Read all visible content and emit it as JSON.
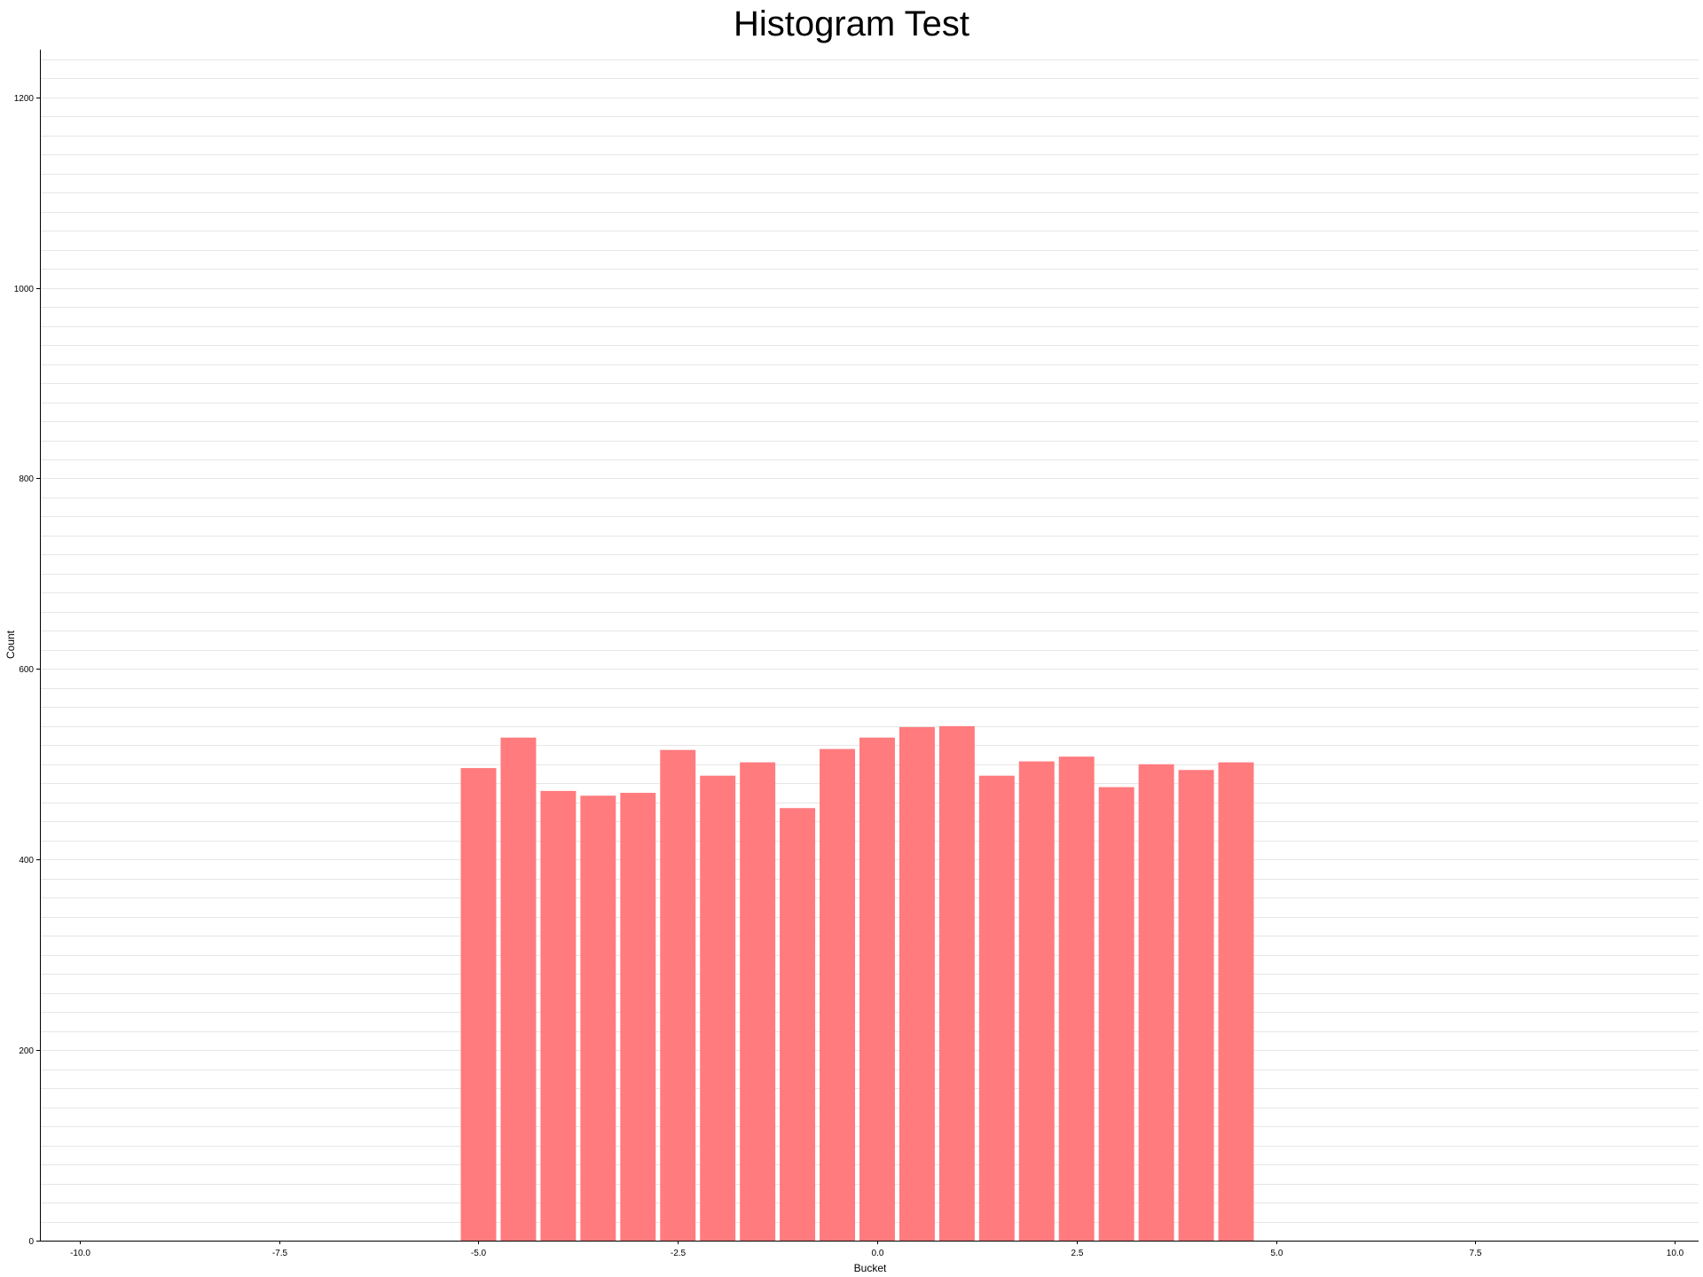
{
  "chart_data": {
    "type": "bar",
    "title": "Histogram Test",
    "xlabel": "Bucket",
    "ylabel": "Count",
    "xlim": [
      -10.5,
      10.3
    ],
    "ylim": [
      0,
      1250
    ],
    "x_ticks": [
      -10.0,
      -7.5,
      -5.0,
      -2.5,
      0.0,
      2.5,
      5.0,
      7.5,
      10.0
    ],
    "x_tick_labels": [
      "-10.0",
      "-7.5",
      "-5.0",
      "-2.5",
      "0.0",
      "2.5",
      "5.0",
      "7.5",
      "10.0"
    ],
    "y_ticks": [
      0,
      200,
      400,
      600,
      800,
      1000,
      1200
    ],
    "y_tick_labels": [
      "0",
      "200",
      "400",
      "600",
      "800",
      "1000",
      "1200"
    ],
    "grid_step": 20,
    "grid": true,
    "bar_color": "#ff7b7e",
    "bin_width": 0.5,
    "bars": [
      {
        "x": -5.0,
        "value": 496
      },
      {
        "x": -4.5,
        "value": 528
      },
      {
        "x": -4.0,
        "value": 472
      },
      {
        "x": -3.5,
        "value": 467
      },
      {
        "x": -3.0,
        "value": 470
      },
      {
        "x": -2.5,
        "value": 515
      },
      {
        "x": -2.0,
        "value": 488
      },
      {
        "x": -1.5,
        "value": 502
      },
      {
        "x": -1.0,
        "value": 454
      },
      {
        "x": -0.5,
        "value": 516
      },
      {
        "x": 0.0,
        "value": 528
      },
      {
        "x": 0.5,
        "value": 539
      },
      {
        "x": 1.0,
        "value": 540
      },
      {
        "x": 1.5,
        "value": 488
      },
      {
        "x": 2.0,
        "value": 503
      },
      {
        "x": 2.5,
        "value": 508
      },
      {
        "x": 3.0,
        "value": 476
      },
      {
        "x": 3.5,
        "value": 500
      },
      {
        "x": 4.0,
        "value": 494
      },
      {
        "x": 4.5,
        "value": 502
      }
    ]
  }
}
